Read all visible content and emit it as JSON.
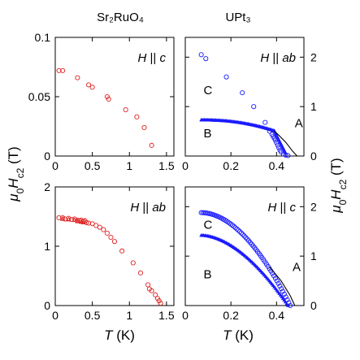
{
  "column_titles": {
    "left": "Sr₂RuO₄",
    "right": "UPt₃"
  },
  "y_axis_label": {
    "italic": "μ",
    "sub0": "0",
    "mid": "H",
    "sub": "c2",
    "unit": " (T)"
  },
  "x_axis_label": {
    "italic": "T",
    "unit": " (K)"
  },
  "chart_data": [
    {
      "type": "scatter",
      "material": "Sr2RuO4",
      "field_label": "H || c",
      "xlim": [
        0,
        1.6
      ],
      "ylim": [
        0,
        0.1
      ],
      "xticks": [
        0,
        0.5,
        1,
        1.5
      ],
      "xtick_labels": [
        "0",
        "0.5",
        "1",
        "1.5"
      ],
      "yticks": [
        0,
        0.05,
        0.1
      ],
      "ytick_labels": [
        "0",
        "0.05",
        "0.1"
      ],
      "marker": "open-circle",
      "color": "#e02020",
      "points": [
        [
          0.05,
          0.072
        ],
        [
          0.1,
          0.072
        ],
        [
          0.3,
          0.066
        ],
        [
          0.45,
          0.06
        ],
        [
          0.5,
          0.058
        ],
        [
          0.7,
          0.05
        ],
        [
          0.72,
          0.048
        ],
        [
          0.95,
          0.039
        ],
        [
          1.1,
          0.033
        ],
        [
          1.2,
          0.024
        ],
        [
          1.3,
          0.009
        ]
      ]
    },
    {
      "type": "scatter",
      "material": "Sr2RuO4",
      "field_label": "H || ab",
      "xlim": [
        0,
        1.6
      ],
      "ylim": [
        0,
        2
      ],
      "xticks": [
        0,
        0.5,
        1,
        1.5
      ],
      "xtick_labels": [
        "0",
        "0.5",
        "1",
        "1.5"
      ],
      "yticks": [
        0,
        1,
        2
      ],
      "ytick_labels": [
        "0",
        "1",
        "2"
      ],
      "marker": "open-circle",
      "color": "#e02020",
      "points": [
        [
          0.05,
          1.48
        ],
        [
          0.1,
          1.48
        ],
        [
          0.13,
          1.46
        ],
        [
          0.18,
          1.47
        ],
        [
          0.22,
          1.45
        ],
        [
          0.26,
          1.46
        ],
        [
          0.3,
          1.44
        ],
        [
          0.33,
          1.43
        ],
        [
          0.35,
          1.44
        ],
        [
          0.38,
          1.42
        ],
        [
          0.4,
          1.43
        ],
        [
          0.42,
          1.4
        ],
        [
          0.45,
          1.39
        ],
        [
          0.5,
          1.38
        ],
        [
          0.55,
          1.35
        ],
        [
          0.6,
          1.32
        ],
        [
          0.65,
          1.28
        ],
        [
          0.7,
          1.22
        ],
        [
          0.75,
          1.15
        ],
        [
          0.8,
          1.08
        ],
        [
          0.9,
          0.92
        ],
        [
          1.05,
          0.72
        ],
        [
          1.15,
          0.55
        ],
        [
          1.25,
          0.35
        ],
        [
          1.27,
          0.28
        ],
        [
          1.3,
          0.25
        ],
        [
          1.35,
          0.18
        ],
        [
          1.38,
          0.12
        ],
        [
          1.4,
          0.08
        ],
        [
          1.42,
          0.04
        ]
      ],
      "points_extra": [
        [
          0.1,
          1.46
        ],
        [
          0.18,
          1.45
        ],
        [
          0.26,
          1.44
        ],
        [
          0.3,
          1.42
        ],
        [
          0.35,
          1.41
        ],
        [
          0.38,
          1.4
        ]
      ]
    },
    {
      "type": "scatter",
      "material": "UPt3",
      "field_label": "H || ab",
      "xlim": [
        0,
        0.52
      ],
      "ylim": [
        0,
        2.4
      ],
      "xticks": [
        0,
        0.2,
        0.4
      ],
      "xtick_labels": [
        "0",
        "0.2",
        "0.4"
      ],
      "yticks": [
        0,
        1,
        2
      ],
      "ytick_labels": [
        "0",
        "1",
        "2"
      ],
      "marker_C": "open-circle",
      "marker_B": "filled-triangle",
      "color": "#1a1aff",
      "phase_labels": [
        "C",
        "B",
        "A"
      ],
      "series_C": [
        [
          0.07,
          2.05
        ],
        [
          0.09,
          1.97
        ],
        [
          0.18,
          1.6
        ],
        [
          0.25,
          1.28
        ],
        [
          0.3,
          1.0
        ],
        [
          0.35,
          0.68
        ],
        [
          0.37,
          0.5
        ],
        [
          0.38,
          0.44
        ],
        [
          0.385,
          0.4
        ],
        [
          0.39,
          0.36
        ],
        [
          0.395,
          0.32
        ],
        [
          0.4,
          0.27
        ],
        [
          0.405,
          0.22
        ],
        [
          0.41,
          0.17
        ],
        [
          0.415,
          0.12
        ],
        [
          0.42,
          0.08
        ],
        [
          0.43,
          0.04
        ],
        [
          0.44,
          0.02
        ],
        [
          0.45,
          0.01
        ]
      ],
      "series_B_start": [
        0.07,
        0.73
      ],
      "series_B_end": [
        0.39,
        0.51
      ],
      "series_A_line": [
        [
          0.39,
          0.51
        ],
        [
          0.41,
          0.42
        ],
        [
          0.44,
          0.28
        ],
        [
          0.47,
          0.1
        ],
        [
          0.49,
          0.0
        ]
      ]
    },
    {
      "type": "scatter",
      "material": "UPt3",
      "field_label": "H || c",
      "xlim": [
        0,
        0.52
      ],
      "ylim": [
        0,
        2.4
      ],
      "xticks": [
        0,
        0.2,
        0.4
      ],
      "xtick_labels": [
        "0",
        "0.2",
        "0.4"
      ],
      "yticks": [
        0,
        1,
        2
      ],
      "ytick_labels": [
        "0",
        "1",
        "2"
      ],
      "marker_C": "open-circle",
      "marker_B": "filled-triangle",
      "color": "#1a1aff",
      "phase_labels": [
        "C",
        "B",
        "A"
      ],
      "series_C_start": [
        0.07,
        1.88
      ],
      "series_C_end": [
        0.46,
        0.0
      ],
      "series_B_start": [
        0.07,
        1.42
      ],
      "series_B_end": [
        0.45,
        0.0
      ],
      "series_A_line": [
        [
          0.37,
          0.78
        ],
        [
          0.42,
          0.5
        ],
        [
          0.46,
          0.2
        ],
        [
          0.48,
          0.0
        ]
      ]
    }
  ]
}
